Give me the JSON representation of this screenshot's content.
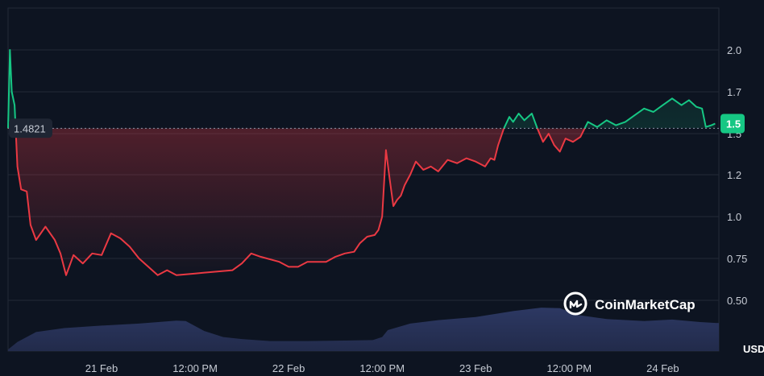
{
  "chart_data": {
    "type": "area",
    "currency": "USD",
    "brand": "CoinMarketCap",
    "reference_label": "1.4821",
    "reference_value": 1.4821,
    "current_label": "1.5",
    "current_value": 1.51,
    "y_ticks": [
      {
        "value": 2.0,
        "label": "2.0"
      },
      {
        "value": 1.7,
        "label": "1.7"
      },
      {
        "value": 1.45,
        "label": "1.5"
      },
      {
        "value": 1.2,
        "label": "1.2"
      },
      {
        "value": 1.0,
        "label": "1.0"
      },
      {
        "value": 0.75,
        "label": "0.75"
      },
      {
        "value": 0.5,
        "label": "0.50"
      }
    ],
    "x_ticks": [
      {
        "t": 0.5,
        "label": "21 Feb"
      },
      {
        "t": 1.0,
        "label": "12:00 PM"
      },
      {
        "t": 1.5,
        "label": "22 Feb"
      },
      {
        "t": 2.0,
        "label": "12:00 PM"
      },
      {
        "t": 2.5,
        "label": "23 Feb"
      },
      {
        "t": 3.0,
        "label": "12:00 PM"
      },
      {
        "t": 3.5,
        "label": "24 Feb"
      }
    ],
    "x_range": [
      0,
      3.8
    ],
    "y_range": [
      0.28,
      2.28
    ],
    "price_series": [
      {
        "t": 0.0,
        "v": 1.48
      },
      {
        "t": 0.01,
        "v": 2.0
      },
      {
        "t": 0.02,
        "v": 1.7
      },
      {
        "t": 0.035,
        "v": 1.62
      },
      {
        "t": 0.05,
        "v": 1.25
      },
      {
        "t": 0.07,
        "v": 1.13
      },
      {
        "t": 0.1,
        "v": 1.12
      },
      {
        "t": 0.12,
        "v": 0.95
      },
      {
        "t": 0.15,
        "v": 0.86
      },
      {
        "t": 0.2,
        "v": 0.94
      },
      {
        "t": 0.25,
        "v": 0.86
      },
      {
        "t": 0.28,
        "v": 0.78
      },
      {
        "t": 0.31,
        "v": 0.65
      },
      {
        "t": 0.35,
        "v": 0.77
      },
      {
        "t": 0.4,
        "v": 0.72
      },
      {
        "t": 0.45,
        "v": 0.78
      },
      {
        "t": 0.5,
        "v": 0.77
      },
      {
        "t": 0.55,
        "v": 0.9
      },
      {
        "t": 0.6,
        "v": 0.87
      },
      {
        "t": 0.65,
        "v": 0.82
      },
      {
        "t": 0.7,
        "v": 0.75
      },
      {
        "t": 0.75,
        "v": 0.7
      },
      {
        "t": 0.8,
        "v": 0.65
      },
      {
        "t": 0.85,
        "v": 0.68
      },
      {
        "t": 0.9,
        "v": 0.65
      },
      {
        "t": 1.0,
        "v": 0.66
      },
      {
        "t": 1.1,
        "v": 0.67
      },
      {
        "t": 1.2,
        "v": 0.68
      },
      {
        "t": 1.25,
        "v": 0.72
      },
      {
        "t": 1.3,
        "v": 0.78
      },
      {
        "t": 1.35,
        "v": 0.76
      },
      {
        "t": 1.45,
        "v": 0.73
      },
      {
        "t": 1.5,
        "v": 0.7
      },
      {
        "t": 1.55,
        "v": 0.7
      },
      {
        "t": 1.6,
        "v": 0.73
      },
      {
        "t": 1.7,
        "v": 0.73
      },
      {
        "t": 1.75,
        "v": 0.76
      },
      {
        "t": 1.8,
        "v": 0.78
      },
      {
        "t": 1.85,
        "v": 0.79
      },
      {
        "t": 1.88,
        "v": 0.84
      },
      {
        "t": 1.92,
        "v": 0.88
      },
      {
        "t": 1.96,
        "v": 0.89
      },
      {
        "t": 1.98,
        "v": 0.92
      },
      {
        "t": 2.0,
        "v": 1.0
      },
      {
        "t": 2.02,
        "v": 1.35
      },
      {
        "t": 2.04,
        "v": 1.18
      },
      {
        "t": 2.06,
        "v": 1.05
      },
      {
        "t": 2.08,
        "v": 1.08
      },
      {
        "t": 2.1,
        "v": 1.1
      },
      {
        "t": 2.12,
        "v": 1.15
      },
      {
        "t": 2.15,
        "v": 1.2
      },
      {
        "t": 2.18,
        "v": 1.28
      },
      {
        "t": 2.22,
        "v": 1.23
      },
      {
        "t": 2.26,
        "v": 1.25
      },
      {
        "t": 2.3,
        "v": 1.22
      },
      {
        "t": 2.35,
        "v": 1.29
      },
      {
        "t": 2.4,
        "v": 1.27
      },
      {
        "t": 2.45,
        "v": 1.3
      },
      {
        "t": 2.5,
        "v": 1.28
      },
      {
        "t": 2.55,
        "v": 1.25
      },
      {
        "t": 2.58,
        "v": 1.3
      },
      {
        "t": 2.6,
        "v": 1.29
      },
      {
        "t": 2.62,
        "v": 1.38
      },
      {
        "t": 2.65,
        "v": 1.48
      },
      {
        "t": 2.68,
        "v": 1.55
      },
      {
        "t": 2.7,
        "v": 1.52
      },
      {
        "t": 2.73,
        "v": 1.57
      },
      {
        "t": 2.76,
        "v": 1.53
      },
      {
        "t": 2.8,
        "v": 1.57
      },
      {
        "t": 2.83,
        "v": 1.48
      },
      {
        "t": 2.86,
        "v": 1.4
      },
      {
        "t": 2.89,
        "v": 1.45
      },
      {
        "t": 2.92,
        "v": 1.38
      },
      {
        "t": 2.95,
        "v": 1.34
      },
      {
        "t": 2.98,
        "v": 1.42
      },
      {
        "t": 3.02,
        "v": 1.4
      },
      {
        "t": 3.06,
        "v": 1.43
      },
      {
        "t": 3.1,
        "v": 1.52
      },
      {
        "t": 3.15,
        "v": 1.49
      },
      {
        "t": 3.2,
        "v": 1.53
      },
      {
        "t": 3.25,
        "v": 1.5
      },
      {
        "t": 3.3,
        "v": 1.52
      },
      {
        "t": 3.35,
        "v": 1.56
      },
      {
        "t": 3.4,
        "v": 1.6
      },
      {
        "t": 3.45,
        "v": 1.58
      },
      {
        "t": 3.5,
        "v": 1.62
      },
      {
        "t": 3.55,
        "v": 1.66
      },
      {
        "t": 3.6,
        "v": 1.62
      },
      {
        "t": 3.64,
        "v": 1.65
      },
      {
        "t": 3.68,
        "v": 1.61
      },
      {
        "t": 3.71,
        "v": 1.6
      },
      {
        "t": 3.73,
        "v": 1.49
      },
      {
        "t": 3.76,
        "v": 1.5
      },
      {
        "t": 3.78,
        "v": 1.51
      }
    ],
    "volume_series": [
      {
        "t": 0.0,
        "v": 0.03
      },
      {
        "t": 0.05,
        "v": 0.18
      },
      {
        "t": 0.15,
        "v": 0.38
      },
      {
        "t": 0.3,
        "v": 0.46
      },
      {
        "t": 0.5,
        "v": 0.51
      },
      {
        "t": 0.7,
        "v": 0.55
      },
      {
        "t": 0.9,
        "v": 0.61
      },
      {
        "t": 0.95,
        "v": 0.6
      },
      {
        "t": 1.05,
        "v": 0.4
      },
      {
        "t": 1.15,
        "v": 0.28
      },
      {
        "t": 1.25,
        "v": 0.24
      },
      {
        "t": 1.4,
        "v": 0.2
      },
      {
        "t": 1.6,
        "v": 0.2
      },
      {
        "t": 1.8,
        "v": 0.21
      },
      {
        "t": 1.95,
        "v": 0.22
      },
      {
        "t": 2.0,
        "v": 0.28
      },
      {
        "t": 2.03,
        "v": 0.42
      },
      {
        "t": 2.15,
        "v": 0.55
      },
      {
        "t": 2.3,
        "v": 0.62
      },
      {
        "t": 2.5,
        "v": 0.68
      },
      {
        "t": 2.7,
        "v": 0.8
      },
      {
        "t": 2.85,
        "v": 0.87
      },
      {
        "t": 2.95,
        "v": 0.86
      },
      {
        "t": 3.05,
        "v": 0.72
      },
      {
        "t": 3.2,
        "v": 0.64
      },
      {
        "t": 3.4,
        "v": 0.6
      },
      {
        "t": 3.55,
        "v": 0.63
      },
      {
        "t": 3.7,
        "v": 0.58
      },
      {
        "t": 3.8,
        "v": 0.56
      }
    ],
    "colors": {
      "background": "#0d1421",
      "up": "#16c784",
      "down": "#ea3943",
      "grid": "#222a38",
      "volume": "#2a3356",
      "badge_up": "#16c784",
      "ref_badge": "#1e2533"
    }
  }
}
